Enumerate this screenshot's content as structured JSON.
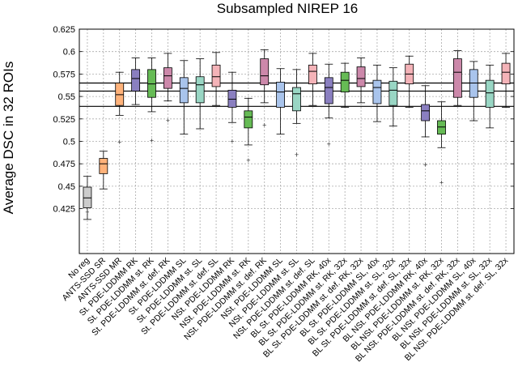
{
  "chart_data": {
    "type": "box",
    "title": "Subsampled NIREP 16",
    "xlabel": "",
    "ylabel": "Average DSC in 32 ROIs",
    "ylim": [
      0.375,
      0.625
    ],
    "yticks": [
      0.425,
      0.45,
      0.475,
      0.5,
      0.525,
      0.55,
      0.575,
      0.6,
      0.625
    ],
    "ytick_labels": [
      "0.425",
      "0.45",
      "0.475",
      "0.5",
      "0.525",
      "0.55",
      "0.575",
      "0.6",
      "0.625"
    ],
    "grid": true,
    "reference_lines": [
      0.539,
      0.556,
      0.565
    ],
    "categories": [
      "No reg",
      "ANTS-SSD SR",
      "ANTS-SSD MR",
      "St. PDE-LDDMM RK",
      "St. PDE-LDDMM st. RK",
      "St. PDE-LDDMM st. def. RK",
      "St. PDE-LDDMM SL",
      "St. PDE-LDDMM st. SL",
      "St. PDE-LDDMM st. def. SL",
      "NSt. PDE-LDDMM RK",
      "NSt. PDE-LDDMM st. RK",
      "NSt. PDE-LDDMM st. def. RK",
      "NSt. PDE-LDDMM SL",
      "NSt. PDE-LDDMM st. SL",
      "NSt. PDE-LDDMM st. def. SL",
      "BL St. PDE-LDDMM RK, 40x",
      "BL St. PDE-LDDMM st. RK, 32x",
      "BL St. PDE-LDDMM st. def. RK, 32x",
      "BL St. PDE-LDDMM SL, 40x",
      "BL St. PDE-LDDMM st. SL, 32x",
      "BL St. PDE-LDDMM st. def. SL, 32x",
      "BL NSt. PDE-LDDMM RK, 40x",
      "BL NSt. PDE-LDDMM st. RK, 32x",
      "BL NSt. PDE-LDDMM st. def. RK, 32x",
      "BL NSt. PDE-LDDMM SL, 40x",
      "BL NSt. PDE-LDDMM st. SL, 32x",
      "BL NSt. PDE-LDDMM st. def. SL, 32x"
    ],
    "boxes": [
      {
        "min": 0.413,
        "q1": 0.426,
        "median": 0.437,
        "q3": 0.449,
        "max": 0.461,
        "outliers": [
          0.421
        ],
        "color": "#cccccc"
      },
      {
        "min": 0.447,
        "q1": 0.464,
        "median": 0.475,
        "q3": 0.481,
        "max": 0.489,
        "outliers": [],
        "color": "#ffb27a"
      },
      {
        "min": 0.529,
        "q1": 0.54,
        "median": 0.552,
        "q3": 0.565,
        "max": 0.577,
        "outliers": [
          0.499
        ],
        "color": "#ffb27a"
      },
      {
        "min": 0.541,
        "q1": 0.556,
        "median": 0.57,
        "q3": 0.58,
        "max": 0.593,
        "outliers": [],
        "color": "#8a7fc0"
      },
      {
        "min": 0.533,
        "q1": 0.549,
        "median": 0.564,
        "q3": 0.58,
        "max": 0.593,
        "outliers": [
          0.501
        ],
        "color": "#66bb55"
      },
      {
        "min": 0.545,
        "q1": 0.559,
        "median": 0.573,
        "q3": 0.582,
        "max": 0.598,
        "outliers": [
          0.523
        ],
        "color": "#cc88aa"
      },
      {
        "min": 0.508,
        "q1": 0.543,
        "median": 0.559,
        "q3": 0.571,
        "max": 0.59,
        "outliers": [],
        "color": "#a9c4ec"
      },
      {
        "min": 0.514,
        "q1": 0.543,
        "median": 0.563,
        "q3": 0.572,
        "max": 0.592,
        "outliers": [],
        "color": "#99d6c4"
      },
      {
        "min": 0.54,
        "q1": 0.561,
        "median": 0.572,
        "q3": 0.585,
        "max": 0.599,
        "outliers": [],
        "color": "#f4b3b8"
      },
      {
        "min": 0.521,
        "q1": 0.538,
        "median": 0.547,
        "q3": 0.557,
        "max": 0.577,
        "outliers": [
          0.5
        ],
        "color": "#8a7fc0"
      },
      {
        "min": 0.496,
        "q1": 0.515,
        "median": 0.527,
        "q3": 0.534,
        "max": 0.548,
        "outliers": [
          0.479
        ],
        "color": "#66bb55"
      },
      {
        "min": 0.543,
        "q1": 0.563,
        "median": 0.573,
        "q3": 0.592,
        "max": 0.602,
        "outliers": [
          0.518
        ],
        "color": "#cc88aa"
      },
      {
        "min": 0.508,
        "q1": 0.538,
        "median": 0.555,
        "q3": 0.566,
        "max": 0.581,
        "outliers": [],
        "color": "#a9c4ec"
      },
      {
        "min": 0.52,
        "q1": 0.534,
        "median": 0.553,
        "q3": 0.56,
        "max": 0.58,
        "outliers": [
          0.485
        ],
        "color": "#99d6c4"
      },
      {
        "min": 0.54,
        "q1": 0.564,
        "median": 0.578,
        "q3": 0.585,
        "max": 0.598,
        "outliers": [],
        "color": "#f4b3b8"
      },
      {
        "min": 0.526,
        "q1": 0.542,
        "median": 0.56,
        "q3": 0.571,
        "max": 0.586,
        "outliers": [
          0.497
        ],
        "color": "#8a7fc0"
      },
      {
        "min": 0.538,
        "q1": 0.555,
        "median": 0.568,
        "q3": 0.577,
        "max": 0.587,
        "outliers": [],
        "color": "#66bb55"
      },
      {
        "min": 0.543,
        "q1": 0.561,
        "median": 0.57,
        "q3": 0.583,
        "max": 0.593,
        "outliers": [],
        "color": "#cc88aa"
      },
      {
        "min": 0.522,
        "q1": 0.542,
        "median": 0.56,
        "q3": 0.568,
        "max": 0.585,
        "outliers": [],
        "color": "#a9c4ec"
      },
      {
        "min": 0.517,
        "q1": 0.54,
        "median": 0.557,
        "q3": 0.567,
        "max": 0.582,
        "outliers": [],
        "color": "#99d6c4"
      },
      {
        "min": 0.538,
        "q1": 0.564,
        "median": 0.575,
        "q3": 0.586,
        "max": 0.595,
        "outliers": [],
        "color": "#f4b3b8"
      },
      {
        "min": 0.505,
        "q1": 0.523,
        "median": 0.534,
        "q3": 0.541,
        "max": 0.562,
        "outliers": [
          0.474
        ],
        "color": "#8a7fc0"
      },
      {
        "min": 0.493,
        "q1": 0.508,
        "median": 0.516,
        "q3": 0.523,
        "max": 0.544,
        "outliers": [
          0.454
        ],
        "color": "#66bb55"
      },
      {
        "min": 0.54,
        "q1": 0.549,
        "median": 0.577,
        "q3": 0.592,
        "max": 0.601,
        "outliers": [],
        "color": "#cc88aa"
      },
      {
        "min": 0.523,
        "q1": 0.549,
        "median": 0.565,
        "q3": 0.58,
        "max": 0.589,
        "outliers": [],
        "color": "#a9c4ec"
      },
      {
        "min": 0.515,
        "q1": 0.538,
        "median": 0.554,
        "q3": 0.568,
        "max": 0.585,
        "outliers": [],
        "color": "#99d6c4"
      },
      {
        "min": 0.538,
        "q1": 0.564,
        "median": 0.577,
        "q3": 0.587,
        "max": 0.598,
        "outliers": [],
        "color": "#f4b3b8"
      }
    ]
  }
}
